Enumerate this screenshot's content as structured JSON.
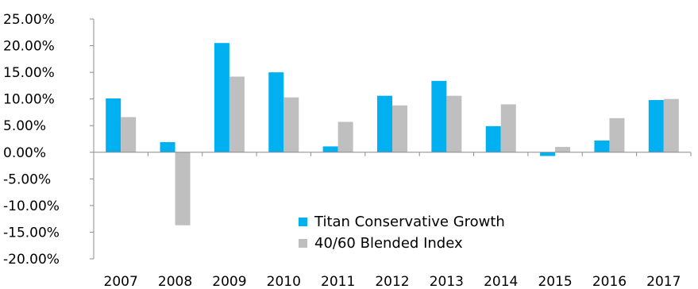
{
  "chart_data": {
    "type": "bar",
    "categories": [
      "2007",
      "2008",
      "2009",
      "2010",
      "2011",
      "2012",
      "2013",
      "2014",
      "2015",
      "2016",
      "2017"
    ],
    "series": [
      {
        "name": "Titan Conservative Growth",
        "color": "#00b0f0",
        "values": [
          10.1,
          1.9,
          20.5,
          15.0,
          1.1,
          10.6,
          13.4,
          4.9,
          -0.7,
          2.2,
          9.8
        ]
      },
      {
        "name": "40/60 Blended Index",
        "color": "#bfbfbf",
        "values": [
          6.6,
          -13.7,
          14.2,
          10.3,
          5.7,
          8.8,
          10.6,
          9.0,
          1.0,
          6.4,
          10.0
        ]
      }
    ],
    "y_ticks": [
      "25.00%",
      "20.00%",
      "15.00%",
      "10.00%",
      "5.00%",
      "0.00%",
      "-5.00%",
      "-10.00%",
      "-15.00%",
      "-20.00%"
    ],
    "ylim": [
      -20,
      25
    ],
    "title": "",
    "xlabel": "",
    "ylabel": "",
    "grid": false,
    "legend_position": "bottom-center"
  }
}
